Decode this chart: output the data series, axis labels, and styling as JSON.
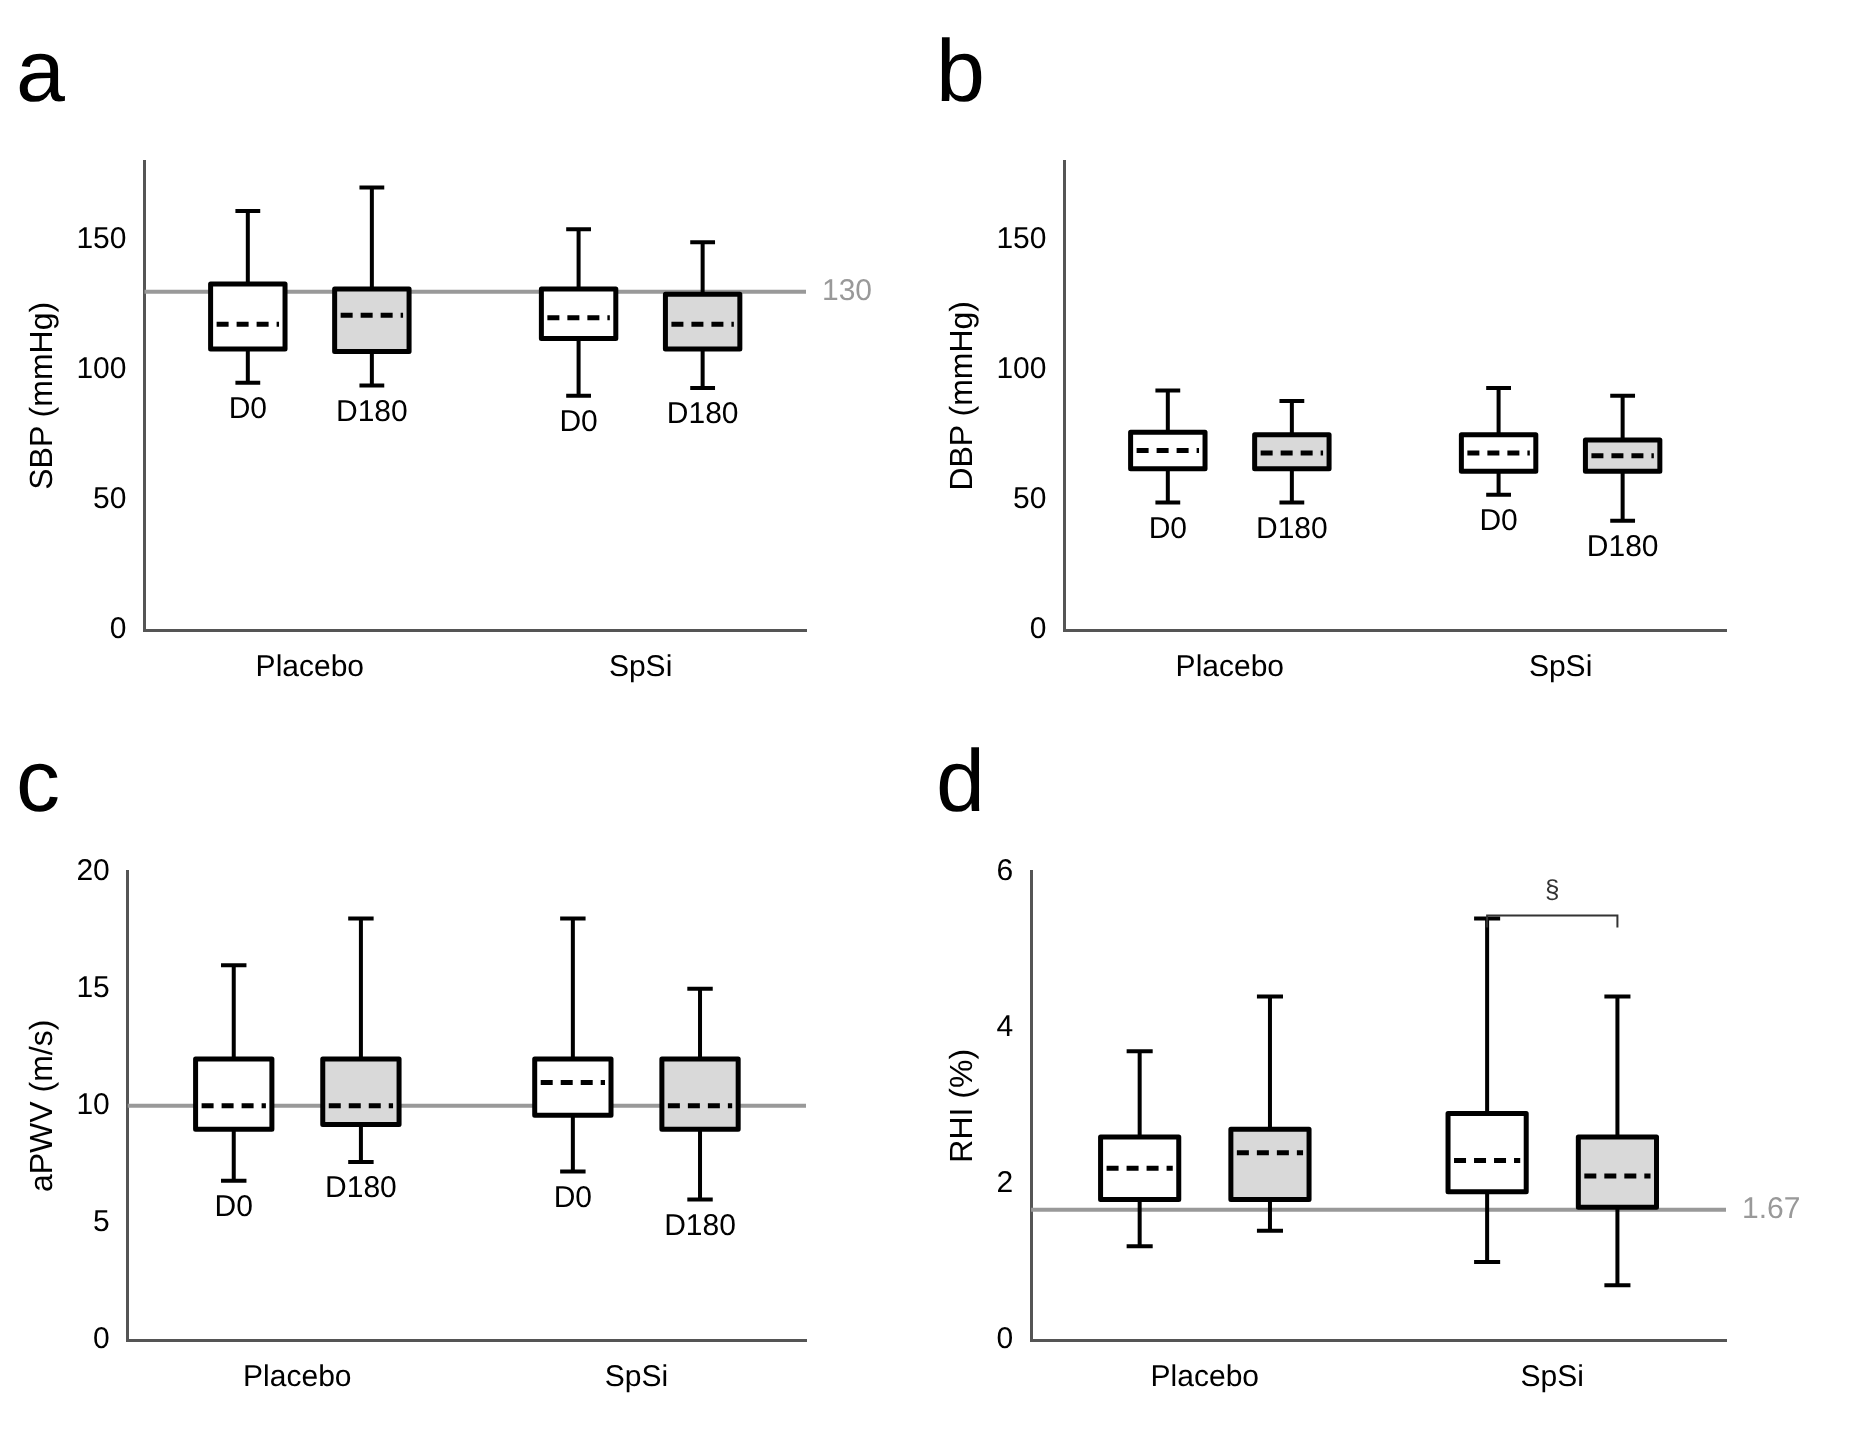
{
  "chart_data": [
    {
      "type": "box",
      "title": "a",
      "ylabel": "SBP (mmHg)",
      "categories": [
        "Placebo",
        "SpSi"
      ],
      "ylim": [
        0,
        180
      ],
      "yticks": [
        0,
        50,
        100,
        150
      ],
      "grid": false,
      "legend": false,
      "series": [
        {
          "name": "D0",
          "color": "#ffffff",
          "boxes": [
            {
              "low": 95,
              "q1": 108,
              "median": 117.5,
              "q3": 133,
              "high": 161
            },
            {
              "low": 90,
              "q1": 112,
              "median": 120,
              "q3": 131,
              "high": 154
            }
          ]
        },
        {
          "name": "D180",
          "color": "#d9d9d9",
          "boxes": [
            {
              "low": 94,
              "q1": 107,
              "median": 121,
              "q3": 131,
              "high": 170
            },
            {
              "low": 93,
              "q1": 108,
              "median": 117.5,
              "q3": 129,
              "high": 149
            }
          ]
        }
      ],
      "ref_lines": [
        {
          "axis": "y",
          "value": 130,
          "label": "130",
          "color": "#999999"
        }
      ]
    },
    {
      "type": "box",
      "title": "b",
      "ylabel": "DBP (mmHg)",
      "categories": [
        "Placebo",
        "SpSi"
      ],
      "ylim": [
        0,
        180
      ],
      "yticks": [
        0,
        50,
        100,
        150
      ],
      "grid": false,
      "legend": false,
      "series": [
        {
          "name": "D0",
          "color": "#ffffff",
          "boxes": [
            {
              "low": 49,
              "q1": 62,
              "median": 69,
              "q3": 76,
              "high": 92
            },
            {
              "low": 52,
              "q1": 61,
              "median": 68,
              "q3": 75,
              "high": 93
            }
          ]
        },
        {
          "name": "D180",
          "color": "#d9d9d9",
          "boxes": [
            {
              "low": 49,
              "q1": 62,
              "median": 68,
              "q3": 75,
              "high": 88
            },
            {
              "low": 42,
              "q1": 61,
              "median": 67,
              "q3": 73,
              "high": 90
            }
          ]
        }
      ]
    },
    {
      "type": "box",
      "title": "c",
      "ylabel": "aPWV (m/s)",
      "categories": [
        "Placebo",
        "SpSi"
      ],
      "ylim": [
        0,
        20
      ],
      "yticks": [
        0,
        5,
        10,
        15,
        20
      ],
      "grid": false,
      "legend": false,
      "series": [
        {
          "name": "D0",
          "color": "#ffffff",
          "boxes": [
            {
              "low": 6.8,
              "q1": 9,
              "median": 10,
              "q3": 12,
              "high": 16
            },
            {
              "low": 7.2,
              "q1": 9.6,
              "median": 11,
              "q3": 12,
              "high": 18
            }
          ]
        },
        {
          "name": "D180",
          "color": "#d9d9d9",
          "boxes": [
            {
              "low": 7.6,
              "q1": 9.2,
              "median": 10,
              "q3": 12,
              "high": 18
            },
            {
              "low": 6,
              "q1": 9,
              "median": 10,
              "q3": 12,
              "high": 15
            }
          ]
        }
      ],
      "ref_lines": [
        {
          "axis": "y",
          "value": 10,
          "color": "#999999"
        }
      ]
    },
    {
      "type": "box",
      "title": "d",
      "ylabel": "RHI (%)",
      "categories": [
        "Placebo",
        "SpSi"
      ],
      "ylim": [
        0,
        6
      ],
      "yticks": [
        0,
        2,
        4,
        6
      ],
      "grid": false,
      "legend": false,
      "series": [
        {
          "color": "#ffffff",
          "boxes": [
            {
              "low": 1.2,
              "q1": 1.8,
              "median": 2.2,
              "q3": 2.6,
              "high": 3.7
            },
            {
              "low": 1,
              "q1": 1.9,
              "median": 2.3,
              "q3": 2.9,
              "high": 5.4
            }
          ]
        },
        {
          "color": "#d9d9d9",
          "boxes": [
            {
              "low": 1.4,
              "q1": 1.8,
              "median": 2.4,
              "q3": 2.7,
              "high": 4.4
            },
            {
              "low": 0.7,
              "q1": 1.7,
              "median": 2.1,
              "q3": 2.6,
              "high": 4.4
            }
          ]
        }
      ],
      "ref_lines": [
        {
          "axis": "y",
          "value": 1.67,
          "label": "1.67",
          "color": "#999999"
        }
      ],
      "annotations": [
        "§"
      ]
    }
  ]
}
